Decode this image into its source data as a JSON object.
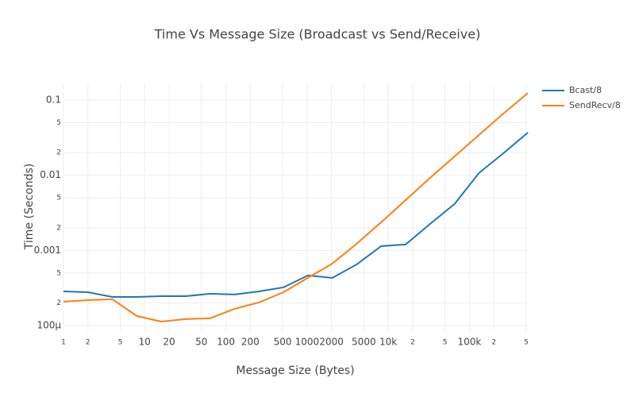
{
  "chart_data": {
    "type": "line",
    "title": "Time Vs Message Size (Broadcast vs Send/Receive)",
    "x_label": "Message Size (Bytes)",
    "y_label": "Time (Seconds)",
    "log_x": true,
    "log_y": true,
    "grid": true,
    "legend": "top-right",
    "x": [
      1,
      2,
      4,
      8,
      16,
      32,
      64,
      128,
      256,
      512,
      1024,
      2048,
      4096,
      8192,
      16384,
      32768,
      65536,
      131072,
      262144,
      524288
    ],
    "series": [
      {
        "name": "Bcast/8",
        "color": "#1f77b4",
        "values": [
          0.000285,
          0.000278,
          0.00024,
          0.00024,
          0.000246,
          0.000246,
          0.000265,
          0.000259,
          0.000285,
          0.000322,
          0.000464,
          0.000431,
          0.000652,
          0.00114,
          0.0012,
          0.00225,
          0.00414,
          0.0107,
          0.0196,
          0.0369
        ]
      },
      {
        "name": "SendRecv/8",
        "color": "#ff7f0e",
        "values": [
          0.000208,
          0.000218,
          0.000224,
          0.000134,
          0.000113,
          0.000122,
          0.000125,
          0.000167,
          0.000203,
          0.000278,
          0.000431,
          0.000668,
          0.00123,
          0.00237,
          0.00467,
          0.00923,
          0.0178,
          0.0343,
          0.0661,
          0.124
        ]
      }
    ],
    "xlim": [
      1,
      524288
    ],
    "ylim": [
      8.24e-05,
      0.1667
    ],
    "xticks": [
      1,
      2,
      5,
      10,
      20,
      50,
      100,
      200,
      500,
      1000,
      2000,
      5000,
      {
        "value": 10000,
        "label": "10k"
      },
      {
        "value": 20000,
        "label": "2"
      },
      {
        "value": 50000,
        "label": "5"
      },
      {
        "value": 100000,
        "label": "100k"
      },
      {
        "value": 200000,
        "label": "2"
      },
      {
        "value": 500000,
        "label": "5"
      }
    ],
    "yticks": [
      {
        "value": 0.0001,
        "label": "100μ"
      },
      {
        "value": 0.0002,
        "label": "2"
      },
      {
        "value": 0.0005,
        "label": "5"
      },
      0.001,
      {
        "value": 0.002,
        "label": "2"
      },
      {
        "value": 0.005,
        "label": "5"
      },
      0.01,
      {
        "value": 0.02,
        "label": "2"
      },
      {
        "value": 0.05,
        "label": "5"
      },
      0.1
    ]
  }
}
